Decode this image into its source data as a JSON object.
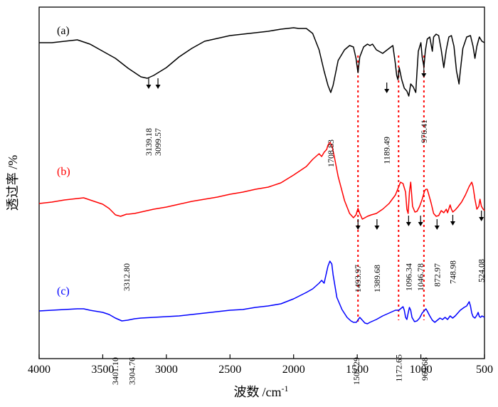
{
  "chart_data": {
    "type": "line",
    "xlabel_main": "波数",
    "xlabel_unit": "/cm",
    "xlabel_exp": "-1",
    "ylabel": "透过率 /%",
    "xlim": [
      4000,
      500
    ],
    "x_ticks": [
      4000,
      3500,
      3000,
      2500,
      2000,
      1500,
      1000,
      500
    ],
    "grid": false,
    "series": [
      {
        "name": "(a)",
        "color": "#000000",
        "points": [
          [
            4000,
            60
          ],
          [
            3900,
            60
          ],
          [
            3800,
            58
          ],
          [
            3700,
            56
          ],
          [
            3600,
            62
          ],
          [
            3500,
            72
          ],
          [
            3400,
            82
          ],
          [
            3300,
            96
          ],
          [
            3200,
            108
          ],
          [
            3150,
            110
          ],
          [
            3100,
            106
          ],
          [
            3000,
            95
          ],
          [
            2900,
            80
          ],
          [
            2800,
            68
          ],
          [
            2700,
            58
          ],
          [
            2600,
            54
          ],
          [
            2500,
            50
          ],
          [
            2400,
            48
          ],
          [
            2300,
            46
          ],
          [
            2200,
            44
          ],
          [
            2100,
            41
          ],
          [
            2000,
            39
          ],
          [
            1960,
            40
          ],
          [
            1900,
            40
          ],
          [
            1850,
            47
          ],
          [
            1800,
            70
          ],
          [
            1760,
            100
          ],
          [
            1730,
            120
          ],
          [
            1708,
            130
          ],
          [
            1690,
            120
          ],
          [
            1650,
            85
          ],
          [
            1600,
            70
          ],
          [
            1560,
            64
          ],
          [
            1530,
            66
          ],
          [
            1510,
            82
          ],
          [
            1494,
            102
          ],
          [
            1480,
            80
          ],
          [
            1450,
            66
          ],
          [
            1420,
            62
          ],
          [
            1400,
            64
          ],
          [
            1380,
            62
          ],
          [
            1350,
            70
          ],
          [
            1300,
            75
          ],
          [
            1250,
            68
          ],
          [
            1220,
            64
          ],
          [
            1200,
            90
          ],
          [
            1190,
            106
          ],
          [
            1180,
            112
          ],
          [
            1170,
            95
          ],
          [
            1150,
            112
          ],
          [
            1130,
            124
          ],
          [
            1110,
            128
          ],
          [
            1095,
            135
          ],
          [
            1080,
            118
          ],
          [
            1060,
            122
          ],
          [
            1040,
            130
          ],
          [
            1030,
            100
          ],
          [
            1020,
            72
          ],
          [
            1000,
            60
          ],
          [
            990,
            80
          ],
          [
            976,
            94
          ],
          [
            965,
            72
          ],
          [
            950,
            55
          ],
          [
            930,
            52
          ],
          [
            910,
            72
          ],
          [
            900,
            52
          ],
          [
            880,
            48
          ],
          [
            860,
            50
          ],
          [
            840,
            70
          ],
          [
            820,
            95
          ],
          [
            800,
            70
          ],
          [
            780,
            52
          ],
          [
            760,
            50
          ],
          [
            740,
            65
          ],
          [
            720,
            100
          ],
          [
            700,
            118
          ],
          [
            690,
            100
          ],
          [
            670,
            68
          ],
          [
            640,
            52
          ],
          [
            610,
            50
          ],
          [
            590,
            65
          ],
          [
            575,
            82
          ],
          [
            560,
            65
          ],
          [
            540,
            52
          ],
          [
            520,
            58
          ],
          [
            500,
            60
          ]
        ]
      },
      {
        "name": "(b)",
        "color": "#ff0000",
        "points": [
          [
            4000,
            286
          ],
          [
            3900,
            284
          ],
          [
            3800,
            281
          ],
          [
            3700,
            279
          ],
          [
            3650,
            278
          ],
          [
            3600,
            281
          ],
          [
            3500,
            287
          ],
          [
            3450,
            293
          ],
          [
            3400,
            302
          ],
          [
            3360,
            304
          ],
          [
            3313,
            301
          ],
          [
            3300,
            301
          ],
          [
            3250,
            300
          ],
          [
            3200,
            298
          ],
          [
            3100,
            294
          ],
          [
            3000,
            291
          ],
          [
            2900,
            287
          ],
          [
            2800,
            283
          ],
          [
            2700,
            280
          ],
          [
            2600,
            277
          ],
          [
            2500,
            273
          ],
          [
            2400,
            270
          ],
          [
            2300,
            266
          ],
          [
            2200,
            263
          ],
          [
            2100,
            257
          ],
          [
            2000,
            246
          ],
          [
            1900,
            234
          ],
          [
            1850,
            224
          ],
          [
            1800,
            216
          ],
          [
            1780,
            220
          ],
          [
            1760,
            214
          ],
          [
            1740,
            210
          ],
          [
            1730,
            204
          ],
          [
            1715,
            200
          ],
          [
            1700,
            204
          ],
          [
            1680,
            220
          ],
          [
            1650,
            248
          ],
          [
            1600,
            282
          ],
          [
            1560,
            300
          ],
          [
            1530,
            306
          ],
          [
            1510,
            302
          ],
          [
            1494,
            293
          ],
          [
            1480,
            300
          ],
          [
            1460,
            308
          ],
          [
            1440,
            306
          ],
          [
            1420,
            304
          ],
          [
            1390,
            302
          ],
          [
            1350,
            300
          ],
          [
            1300,
            294
          ],
          [
            1250,
            286
          ],
          [
            1200,
            274
          ],
          [
            1180,
            265
          ],
          [
            1160,
            256
          ],
          [
            1140,
            258
          ],
          [
            1120,
            270
          ],
          [
            1110,
            294
          ],
          [
            1100,
            300
          ],
          [
            1090,
            270
          ],
          [
            1080,
            256
          ],
          [
            1075,
            268
          ],
          [
            1065,
            290
          ],
          [
            1047,
            298
          ],
          [
            1030,
            297
          ],
          [
            1010,
            290
          ],
          [
            990,
            280
          ],
          [
            970,
            268
          ],
          [
            960,
            266
          ],
          [
            950,
            266
          ],
          [
            940,
            272
          ],
          [
            920,
            285
          ],
          [
            900,
            300
          ],
          [
            880,
            304
          ],
          [
            860,
            303
          ],
          [
            840,
            296
          ],
          [
            820,
            299
          ],
          [
            800,
            294
          ],
          [
            790,
            299
          ],
          [
            770,
            288
          ],
          [
            760,
            294
          ],
          [
            749,
            298
          ],
          [
            730,
            295
          ],
          [
            710,
            291
          ],
          [
            680,
            284
          ],
          [
            650,
            274
          ],
          [
            620,
            262
          ],
          [
            600,
            256
          ],
          [
            590,
            262
          ],
          [
            575,
            280
          ],
          [
            560,
            294
          ],
          [
            545,
            290
          ],
          [
            535,
            280
          ],
          [
            524,
            290
          ],
          [
            510,
            294
          ],
          [
            500,
            296
          ]
        ]
      },
      {
        "name": "(c)",
        "color": "#0000ff",
        "points": [
          [
            4000,
            437
          ],
          [
            3900,
            436
          ],
          [
            3800,
            435
          ],
          [
            3700,
            434
          ],
          [
            3650,
            434
          ],
          [
            3600,
            436
          ],
          [
            3500,
            439
          ],
          [
            3450,
            442
          ],
          [
            3401,
            447
          ],
          [
            3350,
            451
          ],
          [
            3305,
            450
          ],
          [
            3250,
            448
          ],
          [
            3200,
            447
          ],
          [
            3100,
            446
          ],
          [
            3000,
            445
          ],
          [
            2900,
            444
          ],
          [
            2800,
            442
          ],
          [
            2700,
            440
          ],
          [
            2600,
            438
          ],
          [
            2500,
            436
          ],
          [
            2400,
            435
          ],
          [
            2300,
            432
          ],
          [
            2200,
            430
          ],
          [
            2100,
            427
          ],
          [
            2000,
            420
          ],
          [
            1900,
            411
          ],
          [
            1850,
            406
          ],
          [
            1800,
            398
          ],
          [
            1780,
            394
          ],
          [
            1760,
            398
          ],
          [
            1745,
            386
          ],
          [
            1730,
            374
          ],
          [
            1715,
            367
          ],
          [
            1700,
            371
          ],
          [
            1690,
            386
          ],
          [
            1660,
            418
          ],
          [
            1620,
            435
          ],
          [
            1580,
            446
          ],
          [
            1550,
            451
          ],
          [
            1530,
            453
          ],
          [
            1507,
            453
          ],
          [
            1480,
            446
          ],
          [
            1460,
            450
          ],
          [
            1440,
            454
          ],
          [
            1420,
            455
          ],
          [
            1400,
            453
          ],
          [
            1350,
            449
          ],
          [
            1300,
            444
          ],
          [
            1250,
            440
          ],
          [
            1200,
            436
          ],
          [
            1173,
            436
          ],
          [
            1160,
            434
          ],
          [
            1140,
            431
          ],
          [
            1130,
            436
          ],
          [
            1120,
            446
          ],
          [
            1110,
            449
          ],
          [
            1100,
            440
          ],
          [
            1090,
            432
          ],
          [
            1080,
            436
          ],
          [
            1070,
            446
          ],
          [
            1050,
            452
          ],
          [
            1030,
            451
          ],
          [
            1010,
            447
          ],
          [
            990,
            440
          ],
          [
            970,
            436
          ],
          [
            960,
            434
          ],
          [
            950,
            437
          ],
          [
            930,
            444
          ],
          [
            910,
            450
          ],
          [
            890,
            453
          ],
          [
            870,
            450
          ],
          [
            850,
            447
          ],
          [
            830,
            449
          ],
          [
            810,
            446
          ],
          [
            790,
            449
          ],
          [
            770,
            444
          ],
          [
            750,
            447
          ],
          [
            730,
            444
          ],
          [
            710,
            440
          ],
          [
            690,
            436
          ],
          [
            660,
            432
          ],
          [
            640,
            430
          ],
          [
            630,
            427
          ],
          [
            620,
            424
          ],
          [
            610,
            430
          ],
          [
            600,
            440
          ],
          [
            590,
            445
          ],
          [
            575,
            447
          ],
          [
            560,
            443
          ],
          [
            550,
            439
          ],
          [
            540,
            445
          ],
          [
            530,
            446
          ],
          [
            520,
            444
          ],
          [
            500,
            446
          ]
        ]
      }
    ],
    "peak_labels": [
      {
        "text": "3139.18",
        "x": 3139.18,
        "series": 0
      },
      {
        "text": "3099.57",
        "x": 3099.57,
        "series": 0
      },
      {
        "text": "1708.83",
        "x": 1708.83,
        "series": 0
      },
      {
        "text": "1189.49",
        "x": 1189.49,
        "series": 0
      },
      {
        "text": "976.41",
        "x": 976.41,
        "series": 0
      },
      {
        "text": "3312.80",
        "x": 3312.8,
        "series": 1
      },
      {
        "text": "1493.97",
        "x": 1493.97,
        "series": 1
      },
      {
        "text": "1389.68",
        "x": 1389.68,
        "series": 1
      },
      {
        "text": "1096.34",
        "x": 1096.34,
        "series": 1
      },
      {
        "text": "1046.78",
        "x": 1046.78,
        "series": 1
      },
      {
        "text": "872.97",
        "x": 872.97,
        "series": 1
      },
      {
        "text": "748.98",
        "x": 748.98,
        "series": 1
      },
      {
        "text": "524.08",
        "x": 524.08,
        "series": 1
      },
      {
        "text": "3401.10",
        "x": 3401.1,
        "series": 2
      },
      {
        "text": "3304.76",
        "x": 3304.76,
        "series": 2
      },
      {
        "text": "1507.29",
        "x": 1507.29,
        "series": 2
      },
      {
        "text": "1172.65",
        "x": 1172.65,
        "series": 2
      },
      {
        "text": "969.68",
        "x": 969.68,
        "series": 2
      }
    ],
    "reference_lines": [
      {
        "x": 1494,
        "color": "#ff0000",
        "style": "dotted"
      },
      {
        "x": 1175,
        "color": "#ff0000",
        "style": "dotted"
      },
      {
        "x": 976,
        "color": "#ff0000",
        "style": "dotted"
      }
    ]
  }
}
